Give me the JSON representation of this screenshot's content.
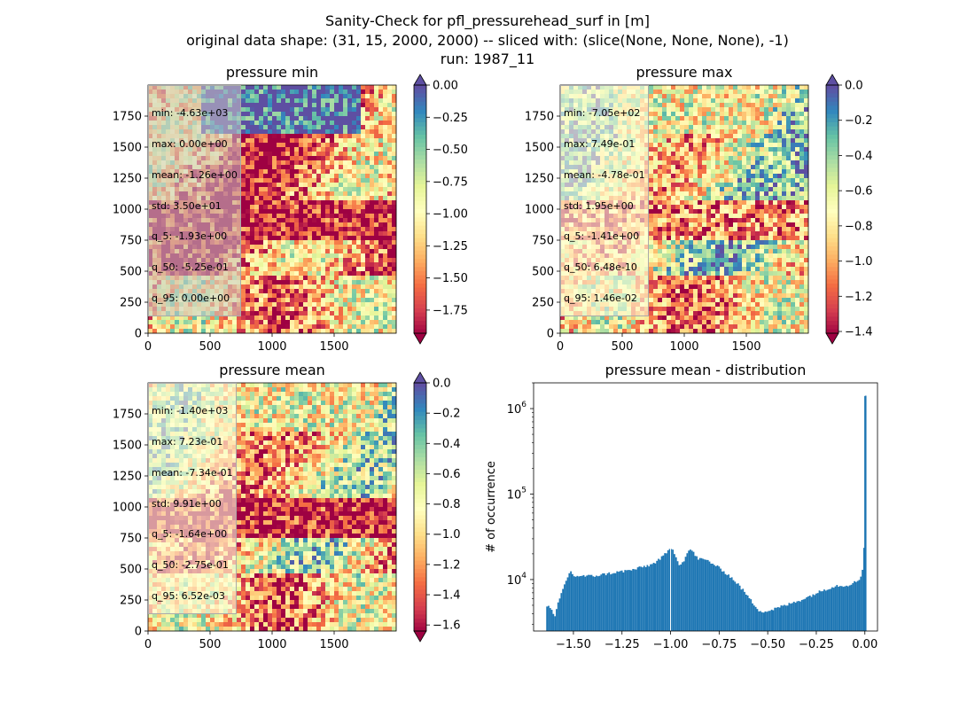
{
  "figure": {
    "suptitle_lines": [
      "Sanity-Check for pfl_pressurehead_surf in [m]",
      "original data shape: (31, 15, 2000, 2000) -- sliced with: (slice(None, None, None), -1)",
      "run: 1987_11"
    ]
  },
  "chart_data": [
    {
      "type": "heatmap",
      "title": "pressure min",
      "x_ticks": [
        "0",
        "500",
        "1000",
        "1500"
      ],
      "y_ticks": [
        "0",
        "250",
        "500",
        "750",
        "1000",
        "1250",
        "1500",
        "1750"
      ],
      "xlim": [
        0,
        2000
      ],
      "ylim": [
        0,
        2000
      ],
      "colormap": "Spectral",
      "colorbar": {
        "ticks": [
          "0.00",
          "−0.25",
          "−0.50",
          "−0.75",
          "−1.00",
          "−1.25",
          "−1.50",
          "−1.75"
        ],
        "range": [
          -1.93,
          0.0
        ],
        "extend": "both"
      },
      "stats": [
        "min: -4.63e+03",
        "max: 0.00e+00",
        "mean: -1.26e+00",
        "std: 3.50e+01",
        "q_5: -1.93e+00",
        "q_50: -5.25e-01",
        "q_95: 0.00e+00"
      ]
    },
    {
      "type": "heatmap",
      "title": "pressure max",
      "x_ticks": [
        "0",
        "500",
        "1000",
        "1500"
      ],
      "y_ticks": [
        "0",
        "250",
        "500",
        "750",
        "1000",
        "1250",
        "1500",
        "1750"
      ],
      "xlim": [
        0,
        2000
      ],
      "ylim": [
        0,
        2000
      ],
      "colormap": "Spectral",
      "colorbar": {
        "ticks": [
          "0.0",
          "−0.2",
          "−0.4",
          "−0.6",
          "−0.8",
          "−1.0",
          "−1.2",
          "−1.4"
        ],
        "range": [
          -1.41,
          0.0
        ],
        "extend": "both"
      },
      "stats": [
        "min: -7.05e+02",
        "max: 7.49e-01",
        "mean: -4.78e-01",
        "std: 1.95e+00",
        "q_5: -1.41e+00",
        "q_50: 6.48e-10",
        "q_95: 1.46e-02"
      ]
    },
    {
      "type": "heatmap",
      "title": "pressure mean",
      "x_ticks": [
        "0",
        "500",
        "1000",
        "1500"
      ],
      "y_ticks": [
        "0",
        "250",
        "500",
        "750",
        "1000",
        "1250",
        "1500",
        "1750"
      ],
      "xlim": [
        0,
        2000
      ],
      "ylim": [
        0,
        2000
      ],
      "colormap": "Spectral",
      "colorbar": {
        "ticks": [
          "0.0",
          "−0.2",
          "−0.4",
          "−0.6",
          "−0.8",
          "−1.0",
          "−1.2",
          "−1.4",
          "−1.6"
        ],
        "range": [
          -1.64,
          0.0
        ],
        "extend": "both"
      },
      "stats": [
        "min: -1.40e+03",
        "max: 7.23e-01",
        "mean: -7.34e-01",
        "std: 9.91e+00",
        "q_5: -1.64e+00",
        "q_50: -2.75e-01",
        "q_95: 6.52e-03"
      ]
    },
    {
      "type": "bar",
      "title": "pressure mean - distribution",
      "ylabel": "# of occurrence",
      "yscale": "log",
      "x_ticks": [
        "−1.50",
        "−1.25",
        "−1.00",
        "−0.75",
        "−0.50",
        "−0.25",
        "0.00"
      ],
      "y_ticks": [
        "10^4",
        "10^5",
        "10^6"
      ],
      "xlim": [
        -1.705,
        0.065
      ],
      "ylim": [
        2500,
        2000000
      ],
      "color": "#1f77b4",
      "bin_width": 0.0082,
      "x": [
        -1.64,
        -1.62,
        -1.6,
        -1.58,
        -1.56,
        -1.54,
        -1.52,
        -1.5,
        -1.45,
        -1.4,
        -1.35,
        -1.3,
        -1.25,
        -1.2,
        -1.15,
        -1.1,
        -1.05,
        -1.02,
        -1.0,
        -0.98,
        -0.96,
        -0.94,
        -0.92,
        -0.9,
        -0.88,
        -0.86,
        -0.82,
        -0.78,
        -0.74,
        -0.7,
        -0.66,
        -0.62,
        -0.58,
        -0.55,
        -0.52,
        -0.5,
        -0.45,
        -0.4,
        -0.35,
        -0.3,
        -0.25,
        -0.2,
        -0.15,
        -0.1,
        -0.06,
        -0.03,
        -0.015,
        -0.005,
        0.0
      ],
      "values": [
        5000,
        4500,
        3600,
        5500,
        7500,
        10000,
        12500,
        11000,
        11000,
        11000,
        11500,
        12000,
        12500,
        13000,
        14000,
        15000,
        18000,
        21000,
        23500,
        20000,
        15000,
        16000,
        20000,
        23000,
        19500,
        17500,
        17000,
        15000,
        13000,
        11000,
        9000,
        7000,
        5300,
        4400,
        4200,
        4300,
        4700,
        5100,
        5600,
        6200,
        7000,
        7800,
        8500,
        8500,
        9200,
        10000,
        13500,
        32000,
        1400000
      ]
    }
  ]
}
